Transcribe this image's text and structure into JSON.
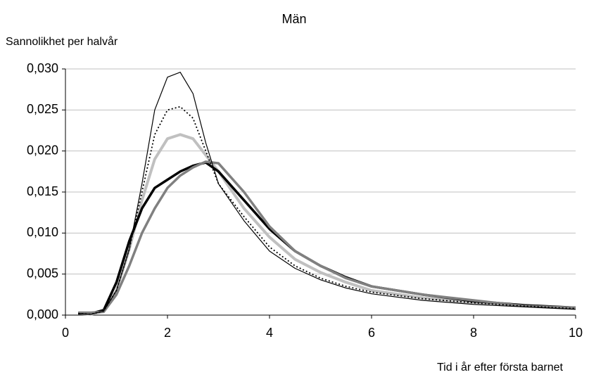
{
  "chart_data": {
    "type": "line",
    "title": "Män",
    "ylabel": "Sannolikhet per halvår",
    "xlabel": "Tid i år efter första barnet",
    "x": [
      0.25,
      0.5,
      0.75,
      1,
      1.25,
      1.5,
      1.75,
      2,
      2.25,
      2.5,
      2.75,
      3,
      3.5,
      4,
      4.5,
      5,
      5.5,
      6,
      7,
      8,
      9,
      10
    ],
    "series": [
      {
        "color": "#000000",
        "width": 1.2,
        "dash": "solid",
        "values": [
          0.0002,
          0.0001,
          0.0005,
          0.003,
          0.008,
          0.016,
          0.025,
          0.029,
          0.0296,
          0.027,
          0.021,
          0.016,
          0.0115,
          0.0078,
          0.0057,
          0.0043,
          0.0033,
          0.0026,
          0.0018,
          0.0013,
          0.001,
          0.0007
        ]
      },
      {
        "color": "#000000",
        "width": 1.8,
        "dash": "dotted",
        "values": [
          0.0002,
          0.0001,
          0.0005,
          0.003,
          0.008,
          0.015,
          0.022,
          0.025,
          0.0254,
          0.024,
          0.02,
          0.016,
          0.012,
          0.0083,
          0.006,
          0.0045,
          0.0035,
          0.0028,
          0.002,
          0.0015,
          0.0011,
          0.0008
        ]
      },
      {
        "color": "#c0c0c0",
        "width": 4,
        "dash": "solid",
        "values": [
          0.0002,
          0.0001,
          0.0005,
          0.003,
          0.008,
          0.014,
          0.019,
          0.0215,
          0.022,
          0.0215,
          0.0195,
          0.0175,
          0.013,
          0.0095,
          0.0068,
          0.0052,
          0.004,
          0.003,
          0.0021,
          0.0015,
          0.0011,
          0.0008
        ]
      },
      {
        "color": "#000000",
        "width": 3.5,
        "dash": "solid",
        "values": [
          0.0002,
          0.0002,
          0.0006,
          0.004,
          0.009,
          0.013,
          0.0155,
          0.0165,
          0.0175,
          0.0182,
          0.0186,
          0.0175,
          0.014,
          0.0105,
          0.0078,
          0.006,
          0.0046,
          0.0035,
          0.0025,
          0.0017,
          0.0012,
          0.0009
        ]
      },
      {
        "color": "#808080",
        "width": 3.5,
        "dash": "solid",
        "values": [
          0.0003,
          0.0003,
          0.0004,
          0.0025,
          0.006,
          0.01,
          0.013,
          0.0155,
          0.017,
          0.018,
          0.0187,
          0.0185,
          0.015,
          0.0108,
          0.0078,
          0.006,
          0.0045,
          0.0035,
          0.0025,
          0.0018,
          0.0011,
          0.0009
        ]
      }
    ],
    "xlim": [
      0,
      10
    ],
    "xticks": [
      0,
      2,
      4,
      6,
      8,
      10
    ],
    "ylim": [
      0,
      0.03
    ],
    "yticks": [
      {
        "value": 0,
        "label": "0,000"
      },
      {
        "value": 0.005,
        "label": "0,005"
      },
      {
        "value": 0.01,
        "label": "0,010"
      },
      {
        "value": 0.015,
        "label": "0,015"
      },
      {
        "value": 0.02,
        "label": "0,020"
      },
      {
        "value": 0.025,
        "label": "0,025"
      },
      {
        "value": 0.03,
        "label": "0,030"
      }
    ],
    "grid": true
  }
}
